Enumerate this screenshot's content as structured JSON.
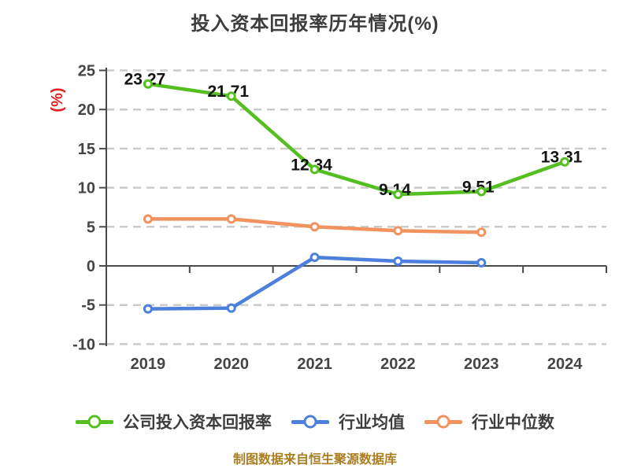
{
  "footer": {
    "caption": "制图数据来自恒生聚源数据库"
  },
  "legend": [
    {
      "id": "company-roic",
      "label": "公司投入资本回报率",
      "color": "#55be21"
    },
    {
      "id": "industry-mean",
      "label": "行业均值",
      "color": "#4d7fdd"
    },
    {
      "id": "industry-median",
      "label": "行业中位数",
      "color": "#f2935f"
    }
  ],
  "colors": {
    "title_text": "#3d3d3d",
    "axis_line": "#4a4a4a",
    "axis_text": "#454545",
    "grid_line": "#cbcbcb",
    "value_label_text": "#141414",
    "y_unit_text": "#e02222",
    "caption_text": "#aa7e22",
    "background": "#ffffff"
  },
  "chart_data": {
    "type": "line",
    "title": "投入资本回报率历年情况(%)",
    "ylabel": "(%)",
    "xlabel": "",
    "categories": [
      "2019",
      "2020",
      "2021",
      "2022",
      "2023",
      "2024"
    ],
    "y_ticks": [
      25,
      20,
      15,
      10,
      5,
      0,
      -5,
      -10
    ],
    "ylim": [
      -10,
      25
    ],
    "grid": "horizontal-dashed",
    "legend_position": "bottom",
    "series": [
      {
        "id": "company-roic",
        "name": "公司投入资本回报率",
        "color": "#55be21",
        "values": [
          23.27,
          21.71,
          12.34,
          9.14,
          9.51,
          13.31
        ],
        "data_labels": [
          "23.27",
          "21.71",
          "12.34",
          "9.14",
          "9.51",
          "13.31"
        ],
        "show_labels": true
      },
      {
        "id": "industry-mean",
        "name": "行业均值",
        "color": "#4d7fdd",
        "values": [
          -5.5,
          -5.4,
          1.1,
          0.6,
          0.4,
          null
        ],
        "data_labels": [],
        "show_labels": false
      },
      {
        "id": "industry-median",
        "name": "行业中位数",
        "color": "#f2935f",
        "values": [
          6.0,
          6.0,
          5.0,
          4.5,
          4.3,
          null
        ],
        "data_labels": [],
        "show_labels": false
      }
    ]
  }
}
